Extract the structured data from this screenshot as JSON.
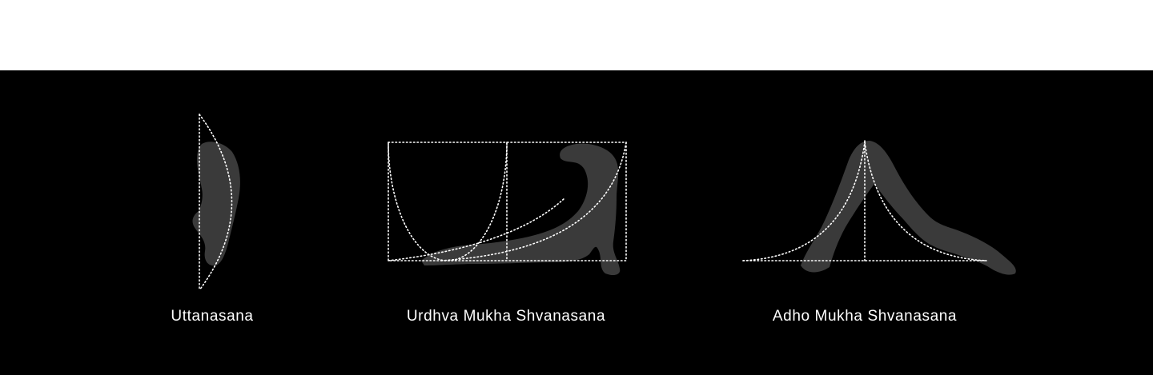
{
  "poses": [
    {
      "name": "Uttanasana"
    },
    {
      "name": "Urdhva Mukha Shvanasana"
    },
    {
      "name": "Adho Mukha Shvanasana"
    }
  ],
  "colors": {
    "background_top": "#ffffff",
    "stage": "#000000",
    "silhouette": "#3a3a3a",
    "guide_lines": "#ffffff",
    "caption": "#ffffff"
  }
}
